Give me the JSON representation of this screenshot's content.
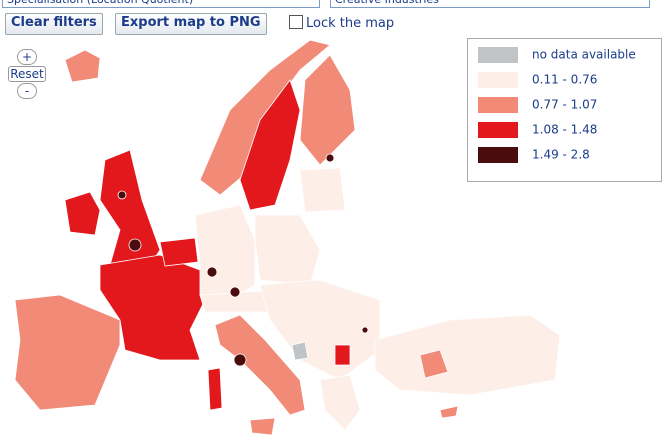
{
  "controls": {
    "indicator": "Specialisation (Location Quotient)",
    "sector": "Creative Industries",
    "clear": "Clear filters",
    "export": "Export map to PNG",
    "lock": "Lock the map"
  },
  "zoom": {
    "in": "+",
    "reset": "Reset",
    "out": "-"
  },
  "legend": [
    {
      "label": "no data available",
      "color": "#c0c4c6"
    },
    {
      "label": "0.11 - 0.76",
      "color": "#fdeee8"
    },
    {
      "label": "0.77 - 1.07",
      "color": "#f28a78"
    },
    {
      "label": "1.08 - 1.48",
      "color": "#e3181d"
    },
    {
      "label": "1.49 - 2.8",
      "color": "#4a0c0c"
    }
  ]
}
